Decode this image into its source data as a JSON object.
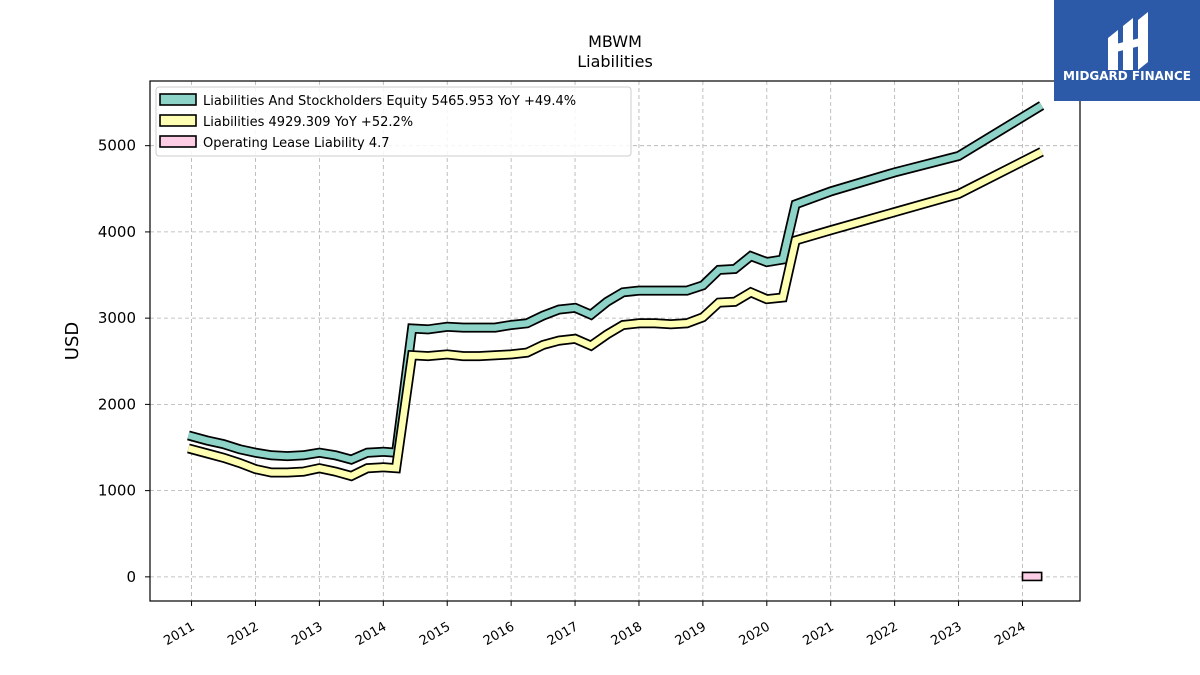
{
  "chart_data": {
    "type": "line",
    "title": "MBWM",
    "subtitle": "Liabilities",
    "ylabel": "USD",
    "xlabel": "",
    "ylim": [
      -280,
      5750
    ],
    "xlim": [
      2010.35,
      2024.9
    ],
    "yticks": [
      0,
      1000,
      2000,
      3000,
      4000,
      5000
    ],
    "ytick_labels": [
      "0",
      "1000",
      "2000",
      "3000",
      "4000",
      "5000"
    ],
    "xticks": [
      2011,
      2012,
      2013,
      2014,
      2015,
      2016,
      2017,
      2018,
      2019,
      2020,
      2021,
      2022,
      2023,
      2024
    ],
    "xtick_labels": [
      "2011",
      "2012",
      "2013",
      "2014",
      "2015",
      "2016",
      "2017",
      "2018",
      "2019",
      "2020",
      "2021",
      "2022",
      "2023",
      "2024"
    ],
    "grid": true,
    "legend_position": "top-left",
    "series": [
      {
        "name": "Liabilities And Stockholders Equity",
        "legend_label": "Liabilities And Stockholders Equity  5465.953 YoY +49.4%",
        "color": "#8dd3c7",
        "x": [
          2010.95,
          2011.25,
          2011.5,
          2011.75,
          2012.0,
          2012.25,
          2012.5,
          2012.75,
          2013.0,
          2013.25,
          2013.5,
          2013.75,
          2014.0,
          2014.2,
          2014.45,
          2014.7,
          2015.0,
          2015.25,
          2015.5,
          2015.75,
          2016.0,
          2016.25,
          2016.5,
          2016.75,
          2017.0,
          2017.25,
          2017.5,
          2017.75,
          2018.0,
          2018.25,
          2018.5,
          2018.75,
          2019.0,
          2019.25,
          2019.5,
          2019.75,
          2020.0,
          2020.25,
          2020.45,
          2021.0,
          2022.0,
          2023.0,
          2024.3
        ],
        "values": [
          1640,
          1580,
          1540,
          1480,
          1440,
          1410,
          1400,
          1410,
          1440,
          1410,
          1360,
          1440,
          1450,
          1440,
          2880,
          2870,
          2900,
          2890,
          2890,
          2890,
          2920,
          2940,
          3030,
          3100,
          3120,
          3040,
          3190,
          3300,
          3320,
          3320,
          3320,
          3320,
          3380,
          3560,
          3570,
          3720,
          3650,
          3680,
          4320,
          4470,
          4690,
          4880,
          5466
        ]
      },
      {
        "name": "Liabilities",
        "legend_label": "Liabilities  4929.309 YoY +52.2%",
        "color": "#ffffb3",
        "x": [
          2010.95,
          2011.25,
          2011.5,
          2011.75,
          2012.0,
          2012.25,
          2012.5,
          2012.75,
          2013.0,
          2013.25,
          2013.5,
          2013.75,
          2014.0,
          2014.2,
          2014.45,
          2014.7,
          2015.0,
          2015.25,
          2015.5,
          2015.75,
          2016.0,
          2016.25,
          2016.5,
          2016.75,
          2017.0,
          2017.25,
          2017.5,
          2017.75,
          2018.0,
          2018.25,
          2018.5,
          2018.75,
          2019.0,
          2019.25,
          2019.5,
          2019.75,
          2020.0,
          2020.25,
          2020.45,
          2021.0,
          2022.0,
          2023.0,
          2024.3
        ],
        "values": [
          1490,
          1430,
          1380,
          1320,
          1250,
          1210,
          1210,
          1220,
          1260,
          1220,
          1170,
          1260,
          1270,
          1260,
          2570,
          2560,
          2580,
          2560,
          2560,
          2570,
          2580,
          2600,
          2690,
          2740,
          2760,
          2680,
          2810,
          2920,
          2940,
          2940,
          2930,
          2940,
          3010,
          3180,
          3190,
          3300,
          3220,
          3240,
          3900,
          4020,
          4230,
          4440,
          4929
        ]
      },
      {
        "name": "Operating Lease Liability",
        "legend_label": "Operating Lease Liability  4.7",
        "color": "#fccde5",
        "x": [
          2024.0,
          2024.3
        ],
        "values": [
          4.7,
          4.7
        ]
      }
    ]
  },
  "logo": {
    "text": "MIDGARD FINANCE",
    "bg_color": "#2d5aa8"
  }
}
